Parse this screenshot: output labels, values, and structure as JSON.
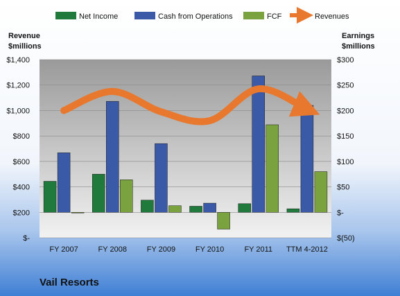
{
  "chart_data": {
    "type": "bar",
    "company": "Vail Resorts",
    "left_axis_title": [
      "Revenue",
      "$millions"
    ],
    "right_axis_title": [
      "Earnings",
      "$millions"
    ],
    "categories": [
      "FY 2007",
      "FY 2008",
      "FY 2009",
      "FY 2010",
      "FY 2011",
      "TTM 4-2012"
    ],
    "left_ticks": [
      "$-",
      "$200",
      "$400",
      "$600",
      "$800",
      "$1,000",
      "$1,200",
      "$1,400"
    ],
    "right_ticks": [
      "$(50)",
      "$-",
      "$50",
      "$100",
      "$150",
      "$200",
      "$250",
      "$300"
    ],
    "left_ylim": [
      0,
      1400
    ],
    "right_ylim": [
      -50,
      300
    ],
    "series": [
      {
        "name": "Net Income",
        "axis": "right",
        "kind": "bar",
        "color": "#1f7a3c",
        "values": [
          61,
          75,
          24,
          12,
          17,
          7
        ]
      },
      {
        "name": "Cash from Operations",
        "axis": "right",
        "kind": "bar",
        "color": "#3a5aa8",
        "values": [
          117,
          218,
          135,
          18,
          268,
          210
        ]
      },
      {
        "name": "FCF",
        "axis": "right",
        "kind": "bar",
        "color": "#7aa23f",
        "values": [
          -1,
          64,
          13,
          -33,
          172,
          80
        ]
      },
      {
        "name": "Revenues",
        "axis": "left",
        "kind": "line",
        "color": "#e8782e",
        "values": [
          1000,
          1150,
          990,
          920,
          1170,
          1010
        ]
      }
    ],
    "grid": true,
    "legend_position": "top"
  }
}
